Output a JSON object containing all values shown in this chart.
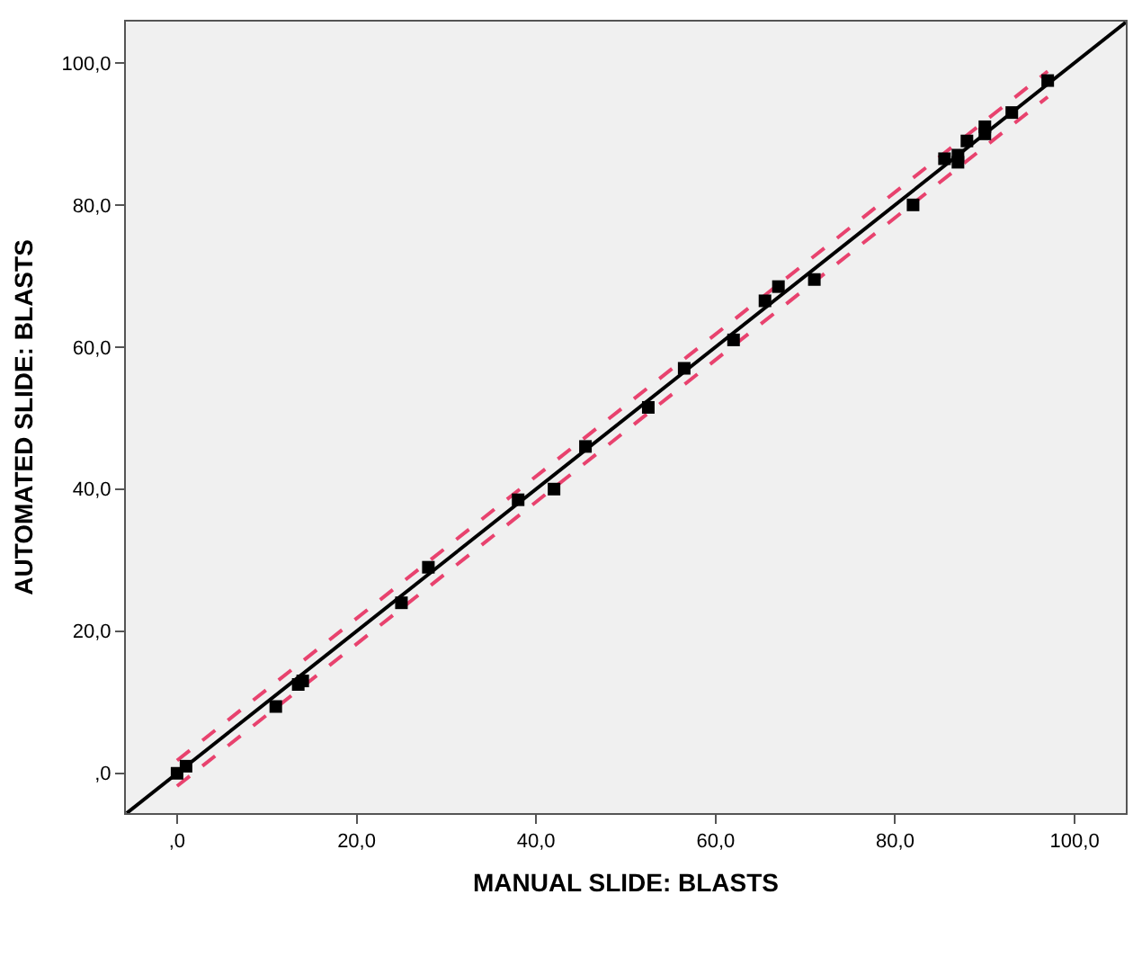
{
  "chart_data": {
    "type": "scatter",
    "xlabel": "MANUAL SLIDE: BLASTS",
    "ylabel": "AUTOMATED SLIDE: BLASTS",
    "xlim": [
      -5.7,
      105.7
    ],
    "ylim": [
      -5.6,
      105.8
    ],
    "xticks": [
      {
        "value": 0,
        "label": ",0"
      },
      {
        "value": 20,
        "label": "20,0"
      },
      {
        "value": 40,
        "label": "40,0"
      },
      {
        "value": 60,
        "label": "60,0"
      },
      {
        "value": 80,
        "label": "80,0"
      },
      {
        "value": 100,
        "label": "100,0"
      }
    ],
    "yticks": [
      {
        "value": 0,
        "label": ",0"
      },
      {
        "value": 20,
        "label": "20,0"
      },
      {
        "value": 40,
        "label": "40,0"
      },
      {
        "value": 60,
        "label": "60,0"
      },
      {
        "value": 80,
        "label": "80,0"
      },
      {
        "value": 100,
        "label": "100,0"
      }
    ],
    "grid": false,
    "marker": "square",
    "series": [
      {
        "type": "line",
        "marker": "none",
        "color": "#e8426e",
        "line_style": "dashed",
        "x": [
          0,
          97
        ],
        "values": [
          1.8,
          98.8
        ]
      },
      {
        "type": "line",
        "marker": "none",
        "color": "#e8426e",
        "line_style": "dashed",
        "x": [
          0,
          97
        ],
        "values": [
          -1.8,
          95.2
        ]
      },
      {
        "type": "line",
        "marker": "none",
        "color": "#000000",
        "line_style": "solid",
        "x": [
          -5.6,
          105.7
        ],
        "values": [
          -5.6,
          105.7
        ]
      },
      {
        "color": "#000000",
        "x": [
          0,
          1,
          11,
          13.5,
          14,
          25,
          28,
          38,
          42,
          45.5,
          52.5,
          56.5,
          62,
          65.5,
          67,
          71,
          82,
          85.5,
          87,
          87,
          88,
          90,
          90,
          93,
          97
        ],
        "values": [
          0,
          1,
          9.4,
          12.5,
          13,
          24,
          29,
          38.5,
          40,
          46,
          51.5,
          57,
          61,
          66.5,
          68.5,
          69.5,
          80,
          86.5,
          86,
          87,
          89,
          90,
          91,
          93,
          97.5
        ]
      }
    ]
  }
}
